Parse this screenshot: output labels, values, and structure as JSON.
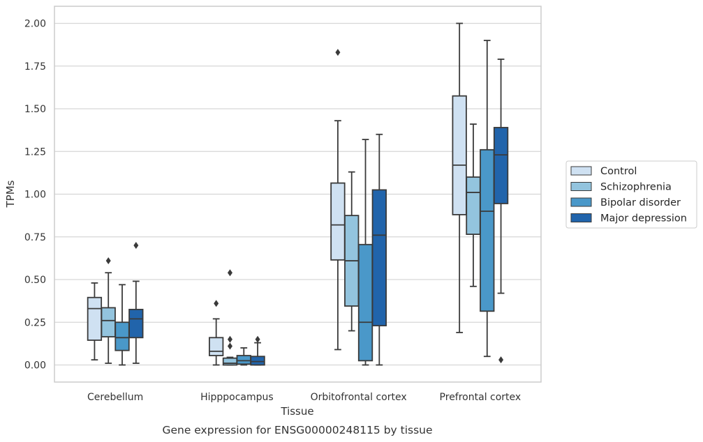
{
  "chart_data": {
    "type": "box",
    "caption": "Gene expression for ENSG00000248115 by tissue",
    "xlabel": "Tissue",
    "ylabel": "TPMs",
    "ylim": [
      -0.1,
      2.1
    ],
    "yticks": [
      "0.00",
      "0.25",
      "0.50",
      "0.75",
      "1.00",
      "1.25",
      "1.50",
      "1.75",
      "2.00"
    ],
    "grid": "horizontal",
    "legend_position": "right",
    "categories": [
      "Cerebellum",
      "Hipppocampus",
      "Orbitofrontal cortex",
      "Prefrontal cortex"
    ],
    "series": [
      {
        "name": "Control",
        "color": "#cfe1f2",
        "boxes": [
          {
            "whisker_low": 0.03,
            "q1": 0.145,
            "median": 0.33,
            "q3": 0.395,
            "whisker_high": 0.48,
            "outliers": []
          },
          {
            "whisker_low": 0.0,
            "q1": 0.055,
            "median": 0.08,
            "q3": 0.16,
            "whisker_high": 0.27,
            "outliers": [
              0.36
            ]
          },
          {
            "whisker_low": 0.09,
            "q1": 0.615,
            "median": 0.82,
            "q3": 1.065,
            "whisker_high": 1.43,
            "outliers": [
              1.83
            ]
          },
          {
            "whisker_low": 0.19,
            "q1": 0.88,
            "median": 1.17,
            "q3": 1.575,
            "whisker_high": 2.0,
            "outliers": []
          }
        ]
      },
      {
        "name": "Schizophrenia",
        "color": "#93c4de",
        "boxes": [
          {
            "whisker_low": 0.01,
            "q1": 0.165,
            "median": 0.26,
            "q3": 0.335,
            "whisker_high": 0.54,
            "outliers": [
              0.61
            ]
          },
          {
            "whisker_low": 0.0,
            "q1": 0.0,
            "median": 0.01,
            "q3": 0.04,
            "whisker_high": 0.045,
            "outliers": [
              0.11,
              0.15,
              0.54
            ]
          },
          {
            "whisker_low": 0.2,
            "q1": 0.345,
            "median": 0.61,
            "q3": 0.875,
            "whisker_high": 1.13,
            "outliers": []
          },
          {
            "whisker_low": 0.46,
            "q1": 0.765,
            "median": 1.01,
            "q3": 1.1,
            "whisker_high": 1.41,
            "outliers": []
          }
        ]
      },
      {
        "name": "Bipolar disorder",
        "color": "#4a98c9",
        "boxes": [
          {
            "whisker_low": 0.0,
            "q1": 0.085,
            "median": 0.16,
            "q3": 0.25,
            "whisker_high": 0.47,
            "outliers": []
          },
          {
            "whisker_low": 0.0,
            "q1": 0.005,
            "median": 0.025,
            "q3": 0.055,
            "whisker_high": 0.1,
            "outliers": []
          },
          {
            "whisker_low": 0.0,
            "q1": 0.025,
            "median": 0.25,
            "q3": 0.705,
            "whisker_high": 1.32,
            "outliers": []
          },
          {
            "whisker_low": 0.05,
            "q1": 0.315,
            "median": 0.9,
            "q3": 1.26,
            "whisker_high": 1.9,
            "outliers": []
          }
        ]
      },
      {
        "name": "Major depression",
        "color": "#2164ab",
        "boxes": [
          {
            "whisker_low": 0.01,
            "q1": 0.16,
            "median": 0.27,
            "q3": 0.325,
            "whisker_high": 0.49,
            "outliers": [
              0.7
            ]
          },
          {
            "whisker_low": 0.0,
            "q1": 0.0,
            "median": 0.02,
            "q3": 0.05,
            "whisker_high": 0.13,
            "outliers": [
              0.15
            ]
          },
          {
            "whisker_low": 0.0,
            "q1": 0.23,
            "median": 0.76,
            "q3": 1.025,
            "whisker_high": 1.35,
            "outliers": []
          },
          {
            "whisker_low": 0.42,
            "q1": 0.945,
            "median": 1.23,
            "q3": 1.39,
            "whisker_high": 1.79,
            "outliers": [
              0.03
            ]
          }
        ]
      }
    ]
  }
}
